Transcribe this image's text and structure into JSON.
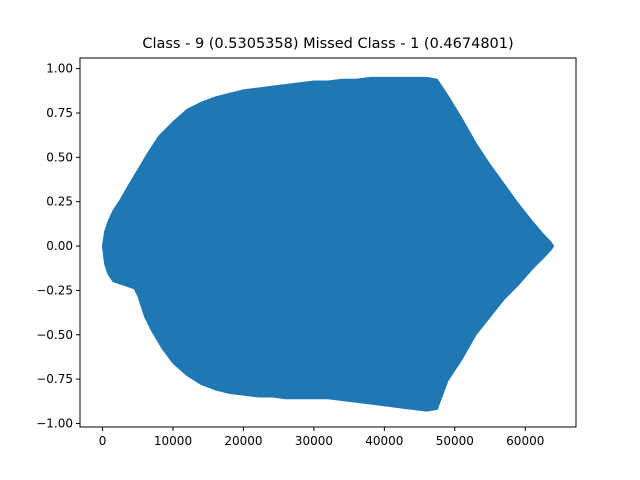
{
  "chart_data": {
    "type": "area",
    "title": "Class - 9 (0.5305358) Missed Class - 1 (0.4674801)",
    "xlabel": "",
    "ylabel": "",
    "xlim": [
      -3200,
      67200
    ],
    "ylim": [
      -1.02,
      1.06
    ],
    "grid": false,
    "series_color": "#1f77b4",
    "x_ticks": [
      {
        "value": 0,
        "label": "0"
      },
      {
        "value": 10000,
        "label": "10000"
      },
      {
        "value": 20000,
        "label": "20000"
      },
      {
        "value": 30000,
        "label": "30000"
      },
      {
        "value": 40000,
        "label": "40000"
      },
      {
        "value": 50000,
        "label": "50000"
      },
      {
        "value": 60000,
        "label": "60000"
      }
    ],
    "y_ticks": [
      {
        "value": 1.0,
        "label": "1.00"
      },
      {
        "value": 0.75,
        "label": "0.75"
      },
      {
        "value": 0.5,
        "label": "0.50"
      },
      {
        "value": 0.25,
        "label": "0.25"
      },
      {
        "value": 0.0,
        "label": "0.00"
      },
      {
        "value": -0.25,
        "label": "−0.25"
      },
      {
        "value": -0.5,
        "label": "−0.50"
      },
      {
        "value": -0.75,
        "label": "−0.75"
      },
      {
        "value": -1.0,
        "label": "−1.00"
      }
    ],
    "series": [
      {
        "upper_envelope": {
          "x": [
            0,
            300,
            800,
            1500,
            2500,
            3500,
            5000,
            6500,
            8000,
            10000,
            12000,
            14000,
            16000,
            18000,
            20000,
            22000,
            24000,
            26000,
            28000,
            30000,
            32000,
            34000,
            36000,
            38000,
            40000,
            42000,
            44000,
            46000,
            47500,
            49000,
            51000,
            53000,
            55000,
            57000,
            59000,
            61000,
            62500,
            63700,
            64000
          ],
          "y": [
            0.0,
            0.08,
            0.14,
            0.2,
            0.26,
            0.33,
            0.43,
            0.53,
            0.62,
            0.7,
            0.77,
            0.81,
            0.84,
            0.86,
            0.88,
            0.89,
            0.9,
            0.91,
            0.92,
            0.93,
            0.93,
            0.94,
            0.94,
            0.95,
            0.95,
            0.95,
            0.95,
            0.95,
            0.94,
            0.85,
            0.72,
            0.58,
            0.46,
            0.35,
            0.24,
            0.14,
            0.07,
            0.02,
            0.0
          ]
        },
        "lower_envelope": {
          "x": [
            0,
            300,
            800,
            1500,
            3000,
            4500,
            5000,
            6000,
            7000,
            8500,
            10000,
            12000,
            14000,
            16000,
            18000,
            20000,
            22000,
            24000,
            26000,
            28000,
            30000,
            32000,
            34000,
            36000,
            38000,
            40000,
            42000,
            44000,
            46000,
            47500,
            49000,
            51000,
            53000,
            55000,
            57000,
            59000,
            61000,
            62500,
            63700,
            64000
          ],
          "y": [
            0.0,
            -0.1,
            -0.16,
            -0.2,
            -0.22,
            -0.24,
            -0.28,
            -0.4,
            -0.48,
            -0.58,
            -0.66,
            -0.73,
            -0.78,
            -0.81,
            -0.83,
            -0.84,
            -0.85,
            -0.85,
            -0.86,
            -0.86,
            -0.86,
            -0.86,
            -0.87,
            -0.88,
            -0.89,
            -0.9,
            -0.91,
            -0.92,
            -0.93,
            -0.92,
            -0.76,
            -0.64,
            -0.5,
            -0.4,
            -0.3,
            -0.22,
            -0.13,
            -0.07,
            -0.02,
            0.0
          ]
        }
      }
    ]
  }
}
